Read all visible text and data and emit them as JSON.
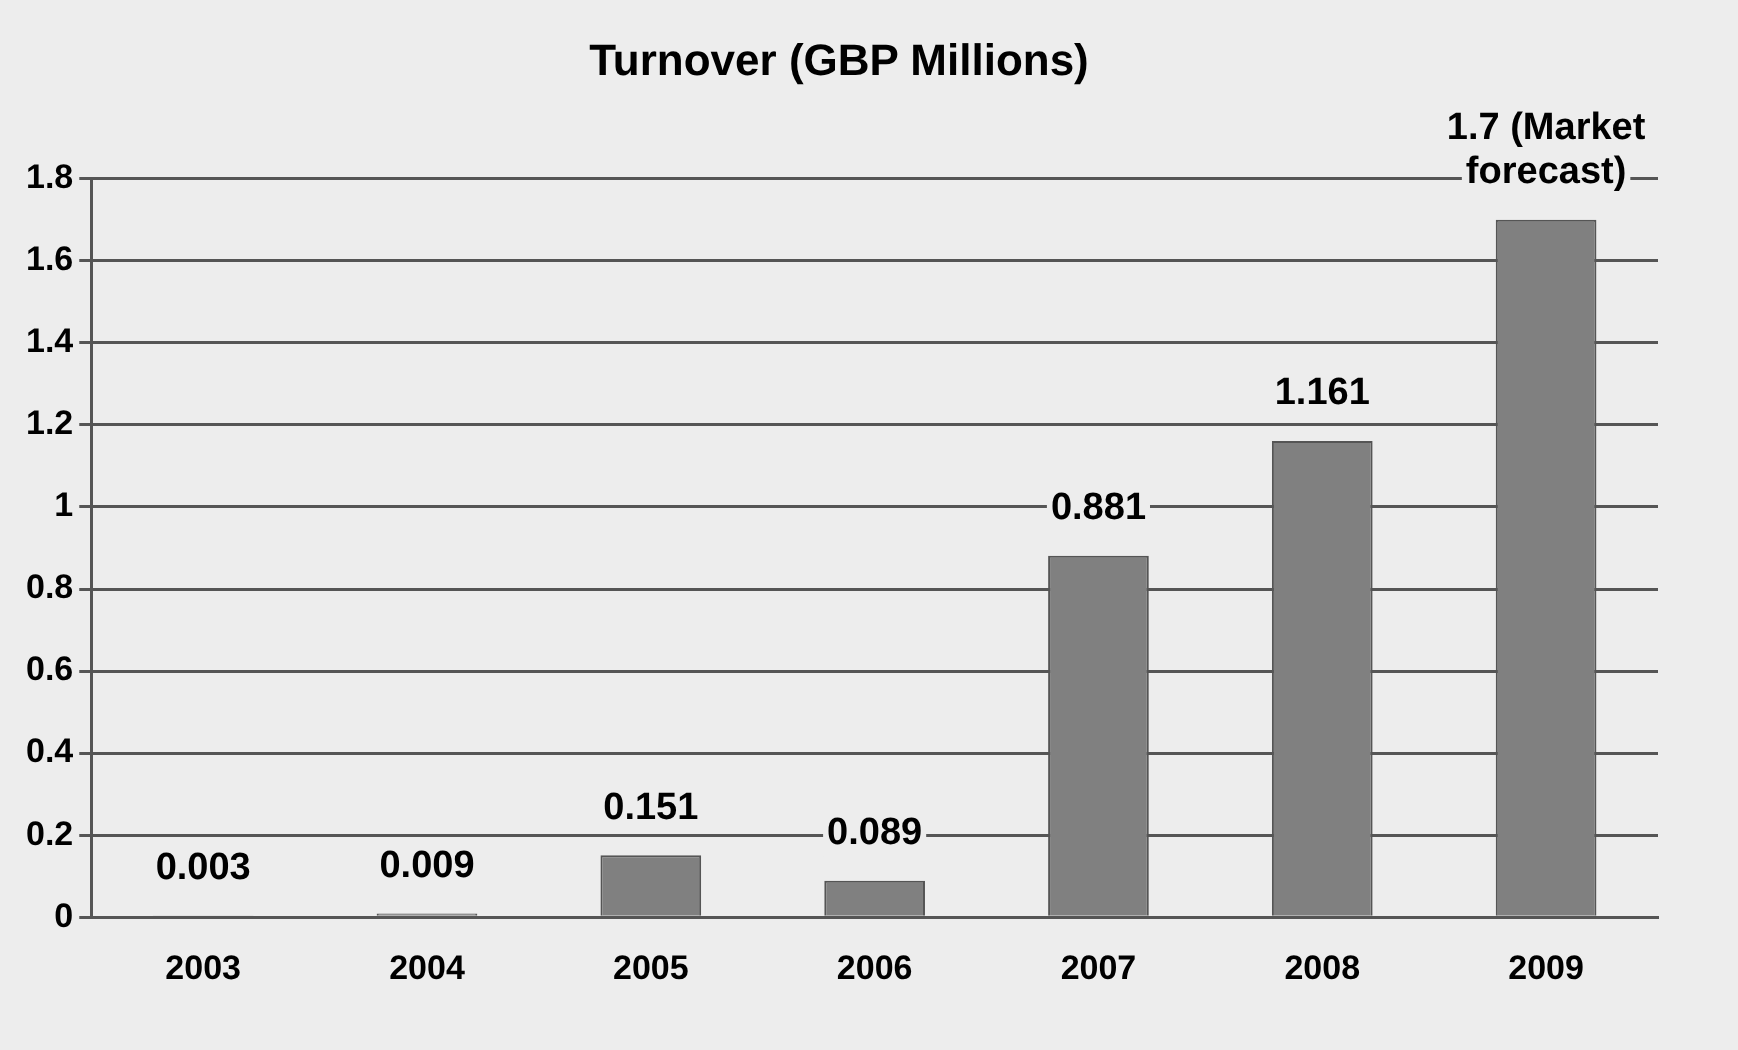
{
  "chart_data": {
    "type": "bar",
    "title": "Turnover (GBP Millions)",
    "categories": [
      "2003",
      "2004",
      "2005",
      "2006",
      "2007",
      "2008",
      "2009"
    ],
    "values": [
      0.003,
      0.009,
      0.151,
      0.089,
      0.881,
      1.161,
      1.7
    ],
    "value_labels": [
      "0.003",
      "0.009",
      "0.151",
      "0.089",
      "0.881",
      "1.161",
      "1.7 (Market forecast)"
    ],
    "color": "#808080",
    "ylim": [
      0,
      1.8
    ],
    "yticks": [
      0,
      0.2,
      0.4,
      0.6,
      0.8,
      1,
      1.2,
      1.4,
      1.6,
      1.8
    ],
    "grid": "y",
    "legend": false
  }
}
